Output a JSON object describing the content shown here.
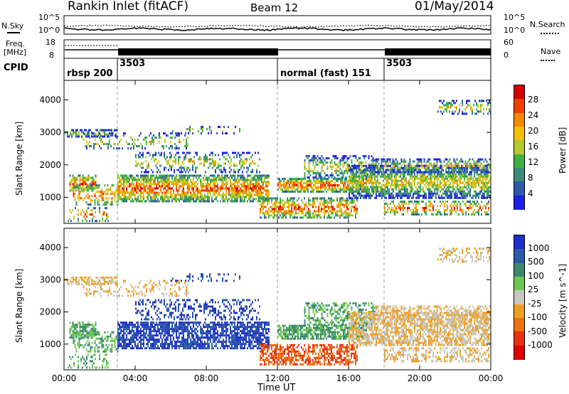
{
  "header": {
    "title": "Rankin Inlet (fitACF)",
    "beam": "Beam 12",
    "date": "01/May/2014"
  },
  "left_labels": {
    "nsky": "N.Sky",
    "freq": "Freq.",
    "freq_unit": "[MHz]",
    "cpid": "CPID"
  },
  "right_labels": {
    "nsearch": "N.Search",
    "nave": "Nave"
  },
  "noise_ticks_left": [
    "10^5",
    "10^0"
  ],
  "noise_ticks_right": [
    "10^5",
    "10^0"
  ],
  "freq_ticks_left": [
    "18",
    "8"
  ],
  "nave_ticks_right": [
    "60",
    "0"
  ],
  "cpid_segments": [
    {
      "label": "rbsp 200",
      "start_hour": 0
    },
    {
      "label": "3503",
      "start_hour": 3
    },
    {
      "label": "normal (fast) 151",
      "start_hour": 12
    },
    {
      "label": "3503",
      "start_hour": 18
    }
  ],
  "chart_data": [
    {
      "type": "heatmap",
      "title": "",
      "parameter": "Power",
      "xlabel": "",
      "ylabel": "Slant Range [km]",
      "xlim_hours": [
        0,
        24
      ],
      "ylim": [
        200,
        4600
      ],
      "yticks": [
        1000,
        2000,
        3000,
        4000
      ],
      "colorbar": {
        "label": "Power [dB]",
        "ticks": [
          "28",
          "24",
          "20",
          "16",
          "12",
          "8",
          "4"
        ],
        "colors": [
          "#d40000",
          "#f04000",
          "#f58a00",
          "#f5c000",
          "#b4c830",
          "#40b040",
          "#3a8c78",
          "#2d5aa8",
          "#1e1ee6"
        ]
      }
    },
    {
      "type": "heatmap",
      "title": "",
      "parameter": "Velocity",
      "xlabel": "Time UT",
      "ylabel": "Slant Range [km]",
      "xlim_hours": [
        0,
        24
      ],
      "ylim": [
        200,
        4600
      ],
      "yticks": [
        1000,
        2000,
        3000,
        4000
      ],
      "xticks": [
        "00:00",
        "04:00",
        "08:00",
        "12:00",
        "16:00",
        "20:00",
        "00:00"
      ],
      "colorbar": {
        "label": "Velocity [m s^-1]",
        "ticks": [
          "1000",
          "500",
          "100",
          "25",
          "-25",
          "-100",
          "-500",
          "-1000"
        ],
        "colors": [
          "#1e2ec8",
          "#2a5aa8",
          "#3a8870",
          "#6cc850",
          "#c8c8c0",
          "#f0a020",
          "#f07010",
          "#e83010",
          "#e00000"
        ]
      }
    }
  ]
}
